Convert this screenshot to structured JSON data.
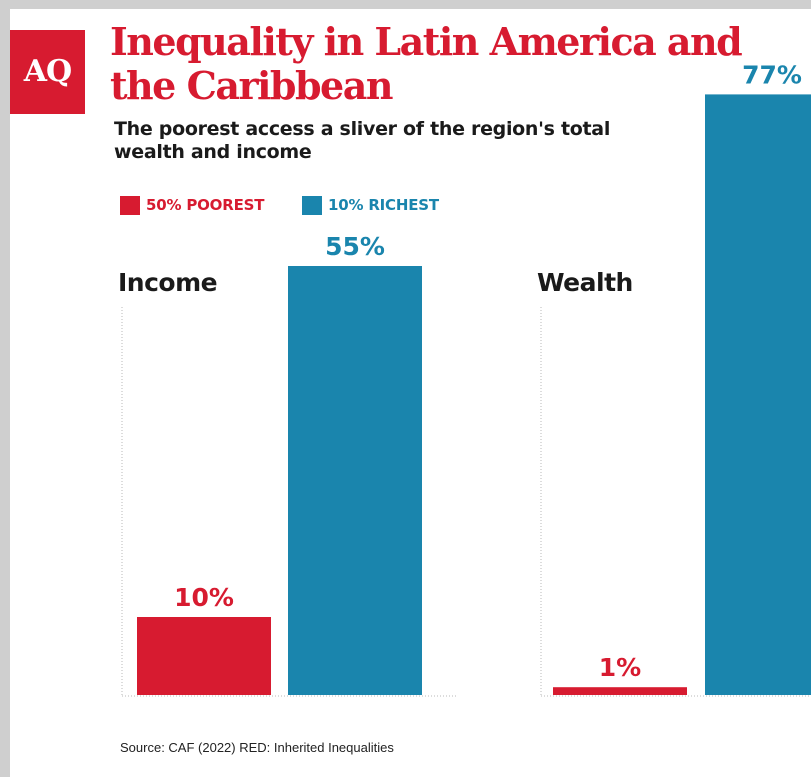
{
  "logo": "AQ",
  "title": "Inequality in Latin America and the Caribbean",
  "subtitle": "The poorest access a sliver of the region's total wealth and income",
  "legend": [
    {
      "label": "50% POOREST",
      "color": "#d71b30"
    },
    {
      "label": "10% RICHEST",
      "color": "#1a85ad"
    }
  ],
  "source": "Source: CAF (2022) RED: Inherited Inequalities",
  "colors": {
    "poorest": "#d71b30",
    "richest": "#1a85ad",
    "brand": "#d71b30"
  },
  "chart_data": [
    {
      "type": "bar",
      "title": "Income",
      "categories": [
        "50% POOREST",
        "10% RICHEST"
      ],
      "values": [
        10,
        55
      ],
      "value_labels": [
        "10%",
        "55%"
      ],
      "ylim": [
        0,
        77
      ],
      "grid": false,
      "legend": "top-left"
    },
    {
      "type": "bar",
      "title": "Wealth",
      "categories": [
        "50% POOREST",
        "10% RICHEST"
      ],
      "values": [
        1,
        77
      ],
      "value_labels": [
        "1%",
        "77%"
      ],
      "ylim": [
        0,
        77
      ],
      "grid": false,
      "legend": "top-left"
    }
  ]
}
